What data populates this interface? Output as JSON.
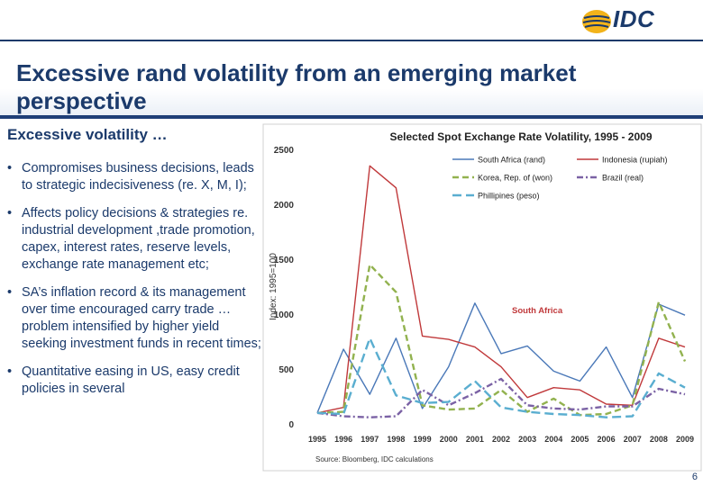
{
  "header": {
    "logo_text": "IDC",
    "title": "Excessive rand volatility from an emerging market perspective"
  },
  "left": {
    "subheading": "Excessive volatility …",
    "bullets": [
      "Compromises business decisions, leads to strategic indecisiveness (re. X, M, I);",
      "Affects policy decisions & strategies re. industrial development ,trade promotion, capex, interest rates, reserve levels, exchange rate management etc;",
      "SA’s inflation record & its management over time encouraged carry trade … problem intensified by higher yield seeking investment funds in recent times;",
      "Quantitative easing in US, easy credit policies in several"
    ]
  },
  "page_number": "6",
  "chart_data": {
    "type": "line",
    "title": "Selected Spot Exchange Rate Volatility, 1995 - 2009",
    "xlabel": "",
    "ylabel": "Index: 1995=100",
    "ylim": [
      0,
      2500
    ],
    "yticks": [
      0,
      500,
      1000,
      1500,
      2000,
      2500
    ],
    "x": [
      "1995",
      "1996",
      "1997",
      "1998",
      "1999",
      "2000",
      "2001",
      "2002",
      "2003",
      "2004",
      "2005",
      "2006",
      "2007",
      "2008",
      "2009"
    ],
    "annotation": "South Africa",
    "source": "Source: Bloomberg, IDC calculations",
    "legend_position": "top-right",
    "grid": false,
    "series": [
      {
        "name": "South Africa (rand)",
        "color": "#4a78b8",
        "dash": "solid",
        "values": [
          100,
          680,
          270,
          780,
          140,
          520,
          1100,
          640,
          710,
          480,
          390,
          700,
          240,
          1090,
          990
        ]
      },
      {
        "name": "Indonesia (rupiah)",
        "color": "#c0393b",
        "dash": "solid",
        "values": [
          100,
          150,
          2350,
          2150,
          800,
          770,
          700,
          520,
          240,
          330,
          310,
          180,
          170,
          780,
          700
        ]
      },
      {
        "name": "Korea, Rep. of (won)",
        "color": "#92b24f",
        "dash": "dash",
        "values": [
          100,
          110,
          1450,
          1200,
          170,
          130,
          140,
          310,
          110,
          230,
          80,
          90,
          170,
          1110,
          570
        ]
      },
      {
        "name": "Brazil (real)",
        "color": "#7b62a5",
        "dash": "dashdot",
        "values": [
          100,
          70,
          60,
          70,
          310,
          170,
          280,
          410,
          170,
          140,
          130,
          160,
          160,
          320,
          270
        ]
      },
      {
        "name": "Phillipines (peso)",
        "color": "#5aaed0",
        "dash": "longdash",
        "values": [
          100,
          90,
          780,
          260,
          190,
          200,
          390,
          150,
          110,
          90,
          80,
          60,
          70,
          460,
          330
        ]
      }
    ]
  }
}
